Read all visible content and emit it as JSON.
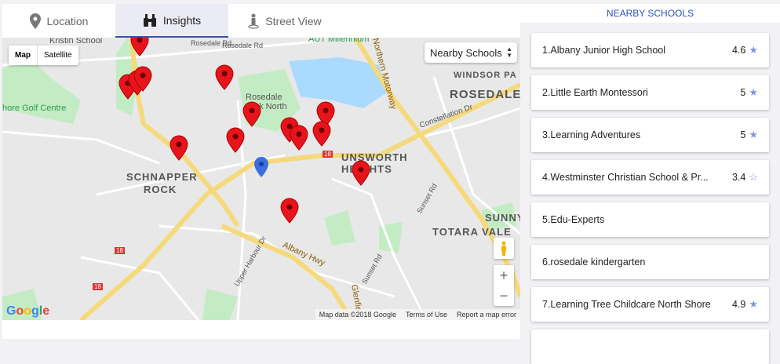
{
  "tabs": [
    {
      "label": "Location",
      "icon": "map-pin-icon"
    },
    {
      "label": "Insights",
      "icon": "binoculars-icon",
      "active": true
    },
    {
      "label": "Street View",
      "icon": "street-view-icon"
    }
  ],
  "map": {
    "type_buttons": [
      "Map",
      "Satellite"
    ],
    "selected_type": "Map",
    "layer_select": "Nearby Schools",
    "labels": [
      "Kristin School",
      "Rosedale Rd",
      "Rosedale Rd",
      "AUT Millennium",
      "WINDSOR PA",
      "ROSEDALE",
      "Rosedale Park North",
      "Constellation Dr",
      "hore Golf Centre",
      "SCHNAPPER",
      "ROCK",
      "UNSWORTH",
      "HEIGHTS",
      "SUNNY",
      "TOTARA VALE",
      "Albany Hwy",
      "Upper Harbour Dr",
      "Sunset Rd",
      "Sunset Rd",
      "Northern Motorway",
      "Glenfield",
      "18",
      "18",
      "18"
    ],
    "attribution": [
      "Map data ©2018 Google",
      "Terms of Use",
      "Report a map error"
    ],
    "logo": "Google",
    "zoom_in": "+",
    "zoom_out": "−"
  },
  "sidebar": {
    "title": "NEARBY SCHOOLS",
    "accent": "#2b52b5",
    "schools": [
      {
        "name": "1.Albany Junior High School",
        "rating": "4.6",
        "star": "full"
      },
      {
        "name": "2.Little Earth Montessori",
        "rating": "5",
        "star": "full"
      },
      {
        "name": "3.Learning Adventures",
        "rating": "5",
        "star": "full"
      },
      {
        "name": "4.Westminster Christian School & Pr...",
        "rating": "3.4",
        "star": "half"
      },
      {
        "name": "5.Edu-Experts",
        "rating": "",
        "star": ""
      },
      {
        "name": "6.rosedale kindergarten",
        "rating": "",
        "star": ""
      },
      {
        "name": "7.Learning Tree Childcare North Shore",
        "rating": "4.9",
        "star": "full"
      },
      {
        "name": "",
        "rating": "",
        "star": ""
      }
    ]
  }
}
